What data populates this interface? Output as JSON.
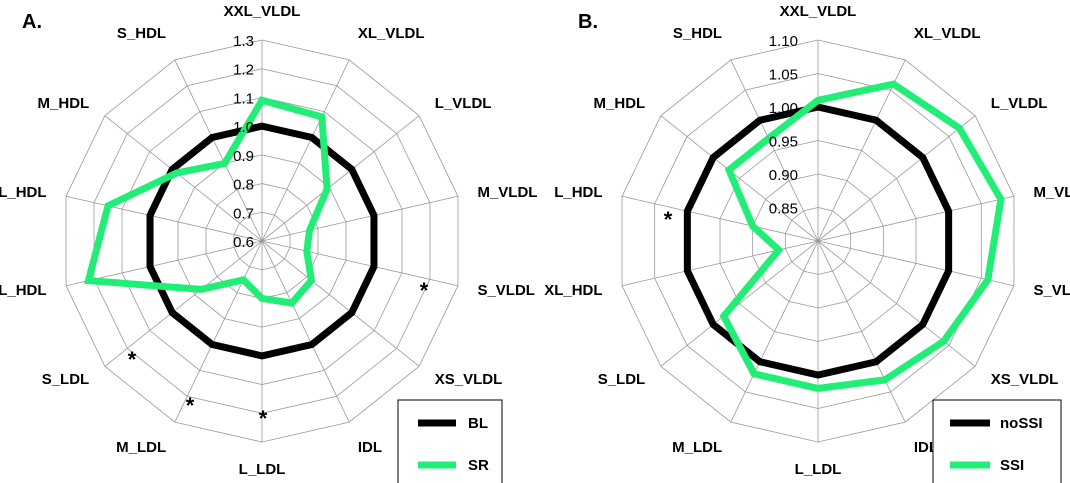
{
  "chart_data": [
    {
      "type": "radar",
      "panel_label": "A.",
      "categories": [
        "XXL_VLDL",
        "XL_VLDL",
        "L_VLDL",
        "M_VLDL",
        "S_VLDL",
        "XS_VLDL",
        "IDL",
        "L_LDL",
        "M_LDL",
        "S_LDL",
        "XL_HDL",
        "L_HDL",
        "M_HDL",
        "S_HDL"
      ],
      "rmin": 0.6,
      "rmax": 1.3,
      "ticks": [
        "0.6",
        "0.7",
        "0.8",
        "0.9",
        "1.0",
        "1.1",
        "1.2",
        "1.3"
      ],
      "series": [
        {
          "name": "BL",
          "color": "#000000",
          "values": [
            1.0,
            1.0,
            1.0,
            1.0,
            1.0,
            1.0,
            1.0,
            1.0,
            1.0,
            1.0,
            1.0,
            1.0,
            1.0,
            1.0
          ]
        },
        {
          "name": "SR",
          "color": "#22ee77",
          "values": [
            1.09,
            1.08,
            0.89,
            0.77,
            0.76,
            0.82,
            0.84,
            0.8,
            0.75,
            0.87,
            1.22,
            1.15,
            0.98,
            0.9
          ]
        }
      ],
      "significant": [
        "S_VLDL",
        "L_LDL",
        "M_LDL",
        "S_LDL"
      ],
      "star_symbol": "*",
      "legend": {
        "position": "bottom-right",
        "entries": [
          "BL",
          "SR"
        ]
      }
    },
    {
      "type": "radar",
      "panel_label": "B.",
      "categories": [
        "XXL_VLDL",
        "XL_VLDL",
        "L_VLDL",
        "M_VLDL",
        "S_VLDL",
        "XS_VLDL",
        "IDL",
        "L_LDL",
        "M_LDL",
        "S_LDL",
        "XL_HDL",
        "L_HDL",
        "M_HDL",
        "S_HDL"
      ],
      "rmin": 0.8,
      "rmax": 1.1,
      "ticks": [
        "0.85",
        "0.90",
        "0.95",
        "1.00",
        "1.05",
        "1.10"
      ],
      "series": [
        {
          "name": "noSSI",
          "color": "#000000",
          "values": [
            1.0,
            1.0,
            1.0,
            1.0,
            1.0,
            1.0,
            1.0,
            1.0,
            1.0,
            1.0,
            1.0,
            1.0,
            1.0,
            1.0
          ]
        },
        {
          "name": "SSI",
          "color": "#22ee77",
          "values": [
            1.01,
            1.06,
            1.07,
            1.08,
            1.06,
            1.04,
            1.03,
            1.02,
            1.02,
            0.98,
            0.86,
            0.9,
            0.97,
            0.97
          ]
        }
      ],
      "significant": [
        "L_HDL"
      ],
      "star_symbol": "*",
      "legend": {
        "position": "bottom-right",
        "entries": [
          "noSSI",
          "SSI"
        ]
      }
    }
  ]
}
